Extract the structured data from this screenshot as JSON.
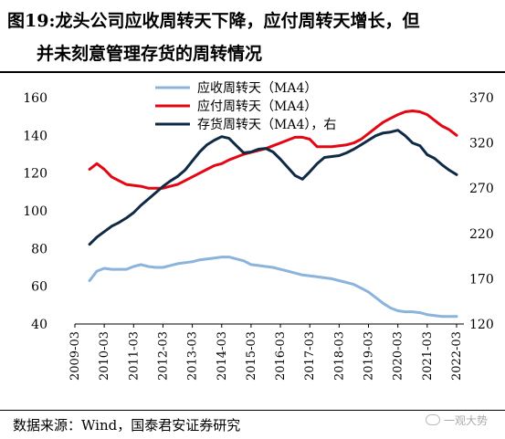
{
  "title": {
    "line1": "图19:龙头公司应收周转天下降，应付周转天增长，但",
    "line2": "并未刻意管理存货的周转情况"
  },
  "source": "数据来源：Wind，国泰君安证券研究",
  "watermark": "一观大势",
  "chart_data": {
    "type": "line",
    "x_labels": [
      "2009-03",
      "2010-03",
      "2011-03",
      "2012-03",
      "2013-03",
      "2014-03",
      "2015-03",
      "2016-03",
      "2017-03",
      "2018-03",
      "2019-03",
      "2020-03",
      "2021-03",
      "2022-03"
    ],
    "y_left": {
      "min": 40,
      "max": 160,
      "ticks": [
        40,
        60,
        80,
        100,
        120,
        140,
        160
      ]
    },
    "y_right": {
      "min": 120,
      "max": 370,
      "ticks": [
        120,
        170,
        220,
        270,
        320,
        370
      ]
    },
    "grid": false,
    "legend_position": "top",
    "series": [
      {
        "name": "应收周转天（MA4）",
        "axis": "left",
        "color": "#8bb4dc",
        "x": [
          2009.75,
          2010.0,
          2010.25,
          2010.5,
          2010.75,
          2011.0,
          2011.25,
          2011.5,
          2011.75,
          2012.0,
          2012.25,
          2012.5,
          2012.75,
          2013.0,
          2013.25,
          2013.5,
          2013.75,
          2014.0,
          2014.25,
          2014.5,
          2014.75,
          2015.0,
          2015.25,
          2015.5,
          2015.75,
          2016.0,
          2016.25,
          2016.5,
          2016.75,
          2017.0,
          2017.25,
          2017.5,
          2017.75,
          2018.0,
          2018.25,
          2018.5,
          2018.75,
          2019.0,
          2019.25,
          2019.5,
          2019.75,
          2020.0,
          2020.25,
          2020.5,
          2020.75,
          2021.0,
          2021.25,
          2021.5,
          2021.75,
          2022.0,
          2022.25
        ],
        "y": [
          63,
          68,
          69.5,
          69,
          69,
          69,
          70.5,
          71.5,
          70.5,
          70,
          70,
          71,
          72,
          72.5,
          73,
          74,
          74.5,
          75,
          75.5,
          75.5,
          74.5,
          73.5,
          71.5,
          71,
          70.5,
          70,
          69,
          68,
          67,
          66,
          65.5,
          65,
          64.5,
          64,
          63,
          62,
          61,
          59,
          57,
          54,
          51,
          48.5,
          47,
          46.5,
          46.5,
          46,
          45,
          44.5,
          44,
          44,
          44
        ]
      },
      {
        "name": "应付周转天（MA4）",
        "axis": "left",
        "color": "#e30613",
        "x": [
          2009.75,
          2010.0,
          2010.25,
          2010.5,
          2010.75,
          2011.0,
          2011.25,
          2011.5,
          2011.75,
          2012.0,
          2012.25,
          2012.5,
          2012.75,
          2013.0,
          2013.25,
          2013.5,
          2013.75,
          2014.0,
          2014.25,
          2014.5,
          2014.75,
          2015.0,
          2015.25,
          2015.5,
          2015.75,
          2016.0,
          2016.25,
          2016.5,
          2016.75,
          2017.0,
          2017.25,
          2017.5,
          2017.75,
          2018.0,
          2018.25,
          2018.5,
          2018.75,
          2019.0,
          2019.25,
          2019.5,
          2019.75,
          2020.0,
          2020.25,
          2020.5,
          2020.75,
          2021.0,
          2021.25,
          2021.5,
          2021.75,
          2022.0,
          2022.25
        ],
        "y": [
          122,
          125,
          122,
          118,
          116,
          114,
          113.5,
          113,
          112,
          112,
          112,
          113,
          114,
          116,
          118,
          120,
          122,
          124,
          125,
          127,
          128.5,
          130,
          131,
          132,
          133,
          134.5,
          136,
          137.5,
          139,
          139,
          138,
          134,
          134,
          134,
          134.5,
          135,
          136,
          138,
          141,
          144,
          147,
          149,
          151,
          152.5,
          153,
          152.5,
          151,
          148,
          145,
          143,
          140
        ]
      },
      {
        "name": "存货周转天（MA4），右",
        "axis": "right",
        "color": "#0f2a44",
        "x": [
          2009.75,
          2010.0,
          2010.25,
          2010.5,
          2010.75,
          2011.0,
          2011.25,
          2011.5,
          2011.75,
          2012.0,
          2012.25,
          2012.5,
          2012.75,
          2013.0,
          2013.25,
          2013.5,
          2013.75,
          2014.0,
          2014.25,
          2014.5,
          2014.75,
          2015.0,
          2015.25,
          2015.5,
          2015.75,
          2016.0,
          2016.25,
          2016.5,
          2016.75,
          2017.0,
          2017.25,
          2017.5,
          2017.75,
          2018.0,
          2018.25,
          2018.5,
          2018.75,
          2019.0,
          2019.25,
          2019.5,
          2019.75,
          2020.0,
          2020.25,
          2020.5,
          2020.75,
          2021.0,
          2021.25,
          2021.5,
          2021.75,
          2022.0,
          2022.25
        ],
        "y": [
          208,
          216,
          222,
          228,
          232,
          237,
          243,
          251,
          258,
          265,
          272,
          278,
          283,
          290,
          300,
          310,
          318,
          323,
          327,
          325,
          317,
          309,
          310,
          313,
          314,
          310,
          302,
          293,
          284,
          280,
          288,
          297,
          304,
          305,
          306,
          309,
          313,
          318,
          323,
          328,
          331,
          332,
          334,
          328,
          320,
          317,
          307,
          303,
          296,
          290,
          285
        ]
      }
    ]
  }
}
